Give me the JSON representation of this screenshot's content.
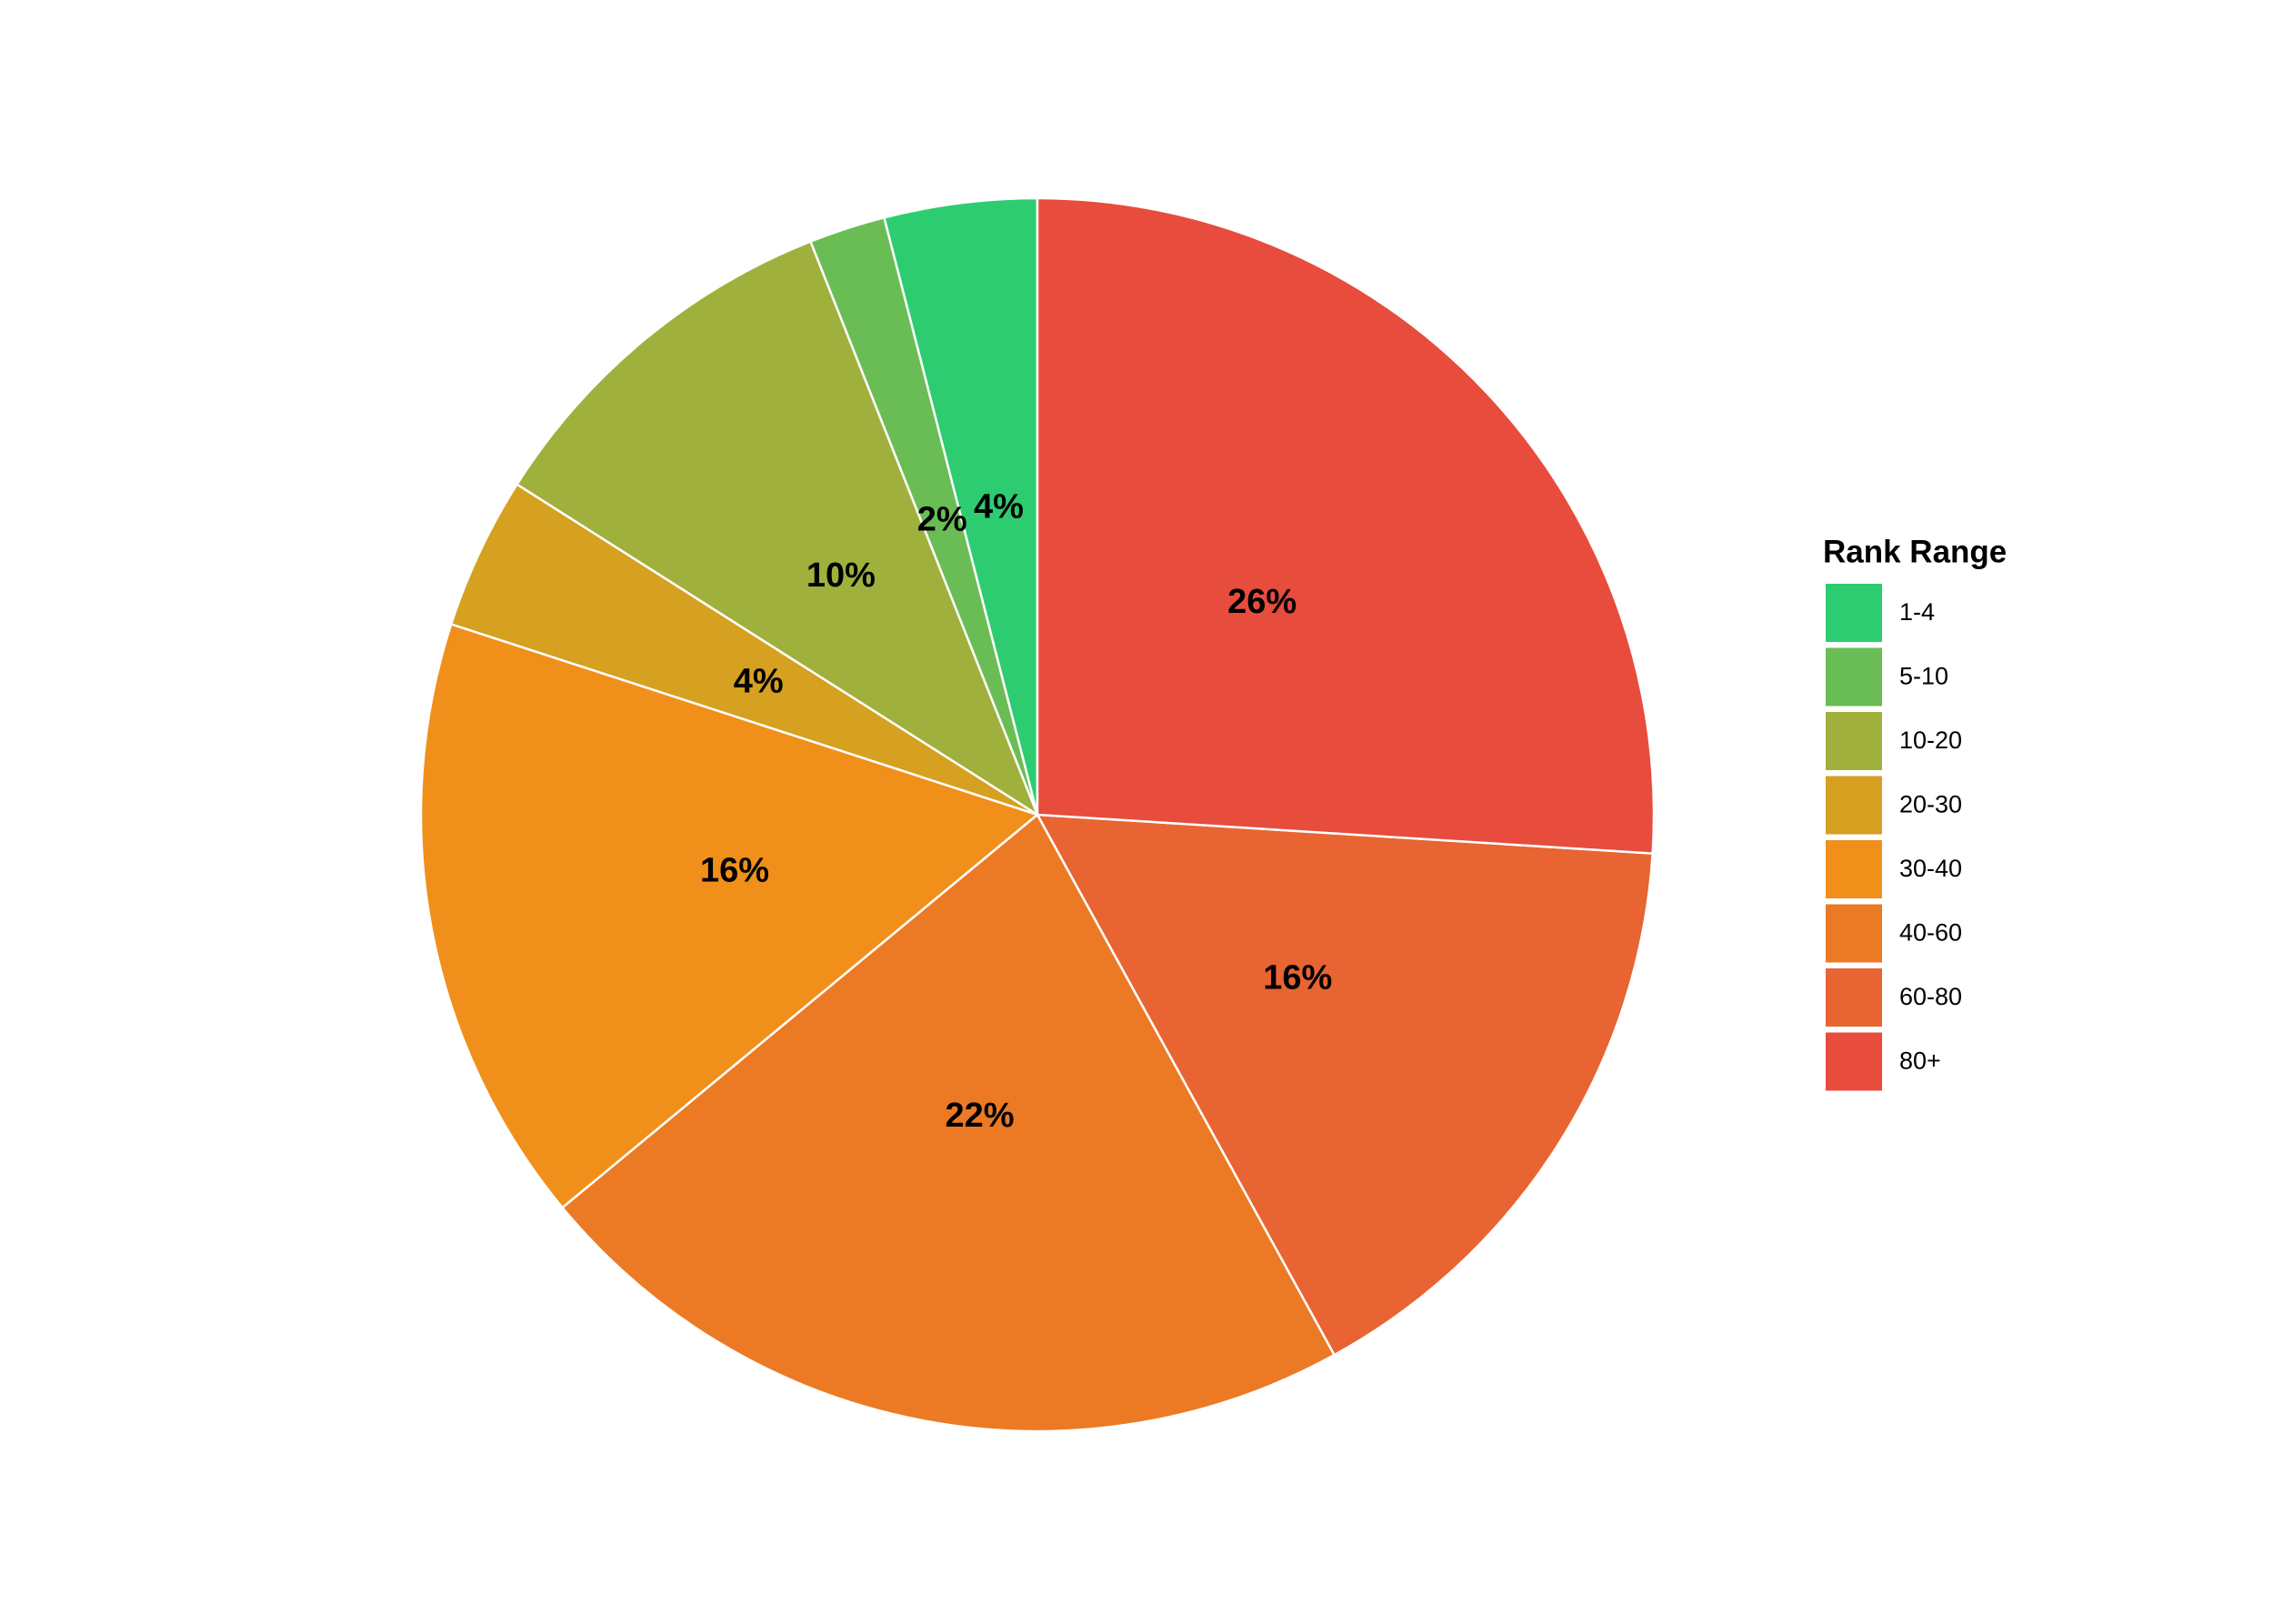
{
  "chart_data": {
    "type": "pie",
    "legend_title": "Rank Range",
    "legend_position": "right",
    "categories": [
      "1-4",
      "5-10",
      "10-20",
      "20-30",
      "30-40",
      "40-60",
      "60-80",
      "80+"
    ],
    "values": [
      4,
      2,
      10,
      4,
      16,
      22,
      16,
      26
    ],
    "value_labels": [
      "4%",
      "2%",
      "10%",
      "4%",
      "16%",
      "22%",
      "16%",
      "26%"
    ],
    "colors": [
      "#2ecc71",
      "#6abd55",
      "#a0b03c",
      "#d6a020",
      "#f0901a",
      "#ec7a24",
      "#e86432",
      "#e74c3c"
    ]
  }
}
